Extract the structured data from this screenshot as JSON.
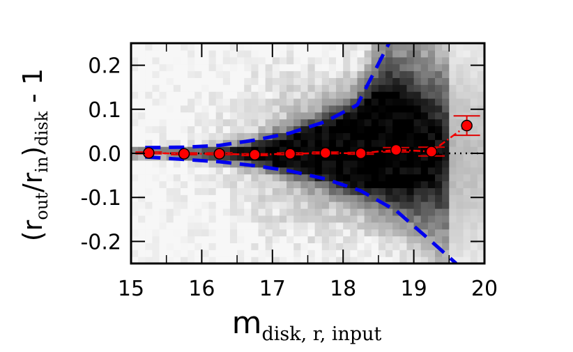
{
  "chart_data": {
    "type": "scatter",
    "xlabel": "m",
    "xlabel_sub": "disk, r, input",
    "ylabel_parts": {
      "open": "(r",
      "sub1": "out",
      "slash": "/r",
      "sub2": "in",
      "close": ")",
      "sub3": "disk",
      "tail": " - 1"
    },
    "xlim": [
      15,
      20
    ],
    "ylim": [
      -0.25,
      0.25
    ],
    "x_ticks": [
      15,
      16,
      17,
      18,
      19,
      20
    ],
    "x_tick_labels": [
      "15",
      "16",
      "17",
      "18",
      "19",
      "20"
    ],
    "y_ticks": [
      -0.2,
      -0.1,
      0.0,
      0.1,
      0.2
    ],
    "y_tick_labels": [
      "-0.2",
      "-0.1",
      "0.0",
      "0.1",
      "0.2"
    ],
    "grid": false,
    "colors": {
      "points": "#ff0000",
      "errorbars": "#e00000",
      "envelope": "#0000ee",
      "reference": "#000000"
    },
    "series": [
      {
        "kind": "binned-median",
        "x": [
          15.25,
          15.75,
          16.25,
          16.75,
          17.25,
          17.75,
          18.25,
          18.75,
          19.25,
          19.75
        ],
        "y": [
          0.001,
          -0.001,
          -0.001,
          -0.003,
          -0.001,
          0.001,
          0.0,
          0.008,
          0.004,
          0.063
        ],
        "yerr": [
          0.002,
          0.002,
          0.002,
          0.002,
          0.002,
          0.002,
          0.002,
          0.005,
          0.01,
          0.022
        ]
      },
      {
        "kind": "upper-envelope",
        "x": [
          15.2,
          15.75,
          16.25,
          16.75,
          17.25,
          17.75,
          18.2,
          18.65
        ],
        "y": [
          0.013,
          0.014,
          0.018,
          0.03,
          0.046,
          0.072,
          0.11,
          0.25
        ]
      },
      {
        "kind": "lower-envelope",
        "x": [
          15.2,
          15.75,
          16.25,
          16.75,
          17.25,
          17.75,
          18.25,
          18.75,
          19.25,
          19.6
        ],
        "y": [
          -0.008,
          -0.014,
          -0.019,
          -0.028,
          -0.04,
          -0.058,
          -0.085,
          -0.13,
          -0.2,
          -0.25
        ]
      }
    ],
    "reference_line": {
      "y": 0.0
    }
  }
}
